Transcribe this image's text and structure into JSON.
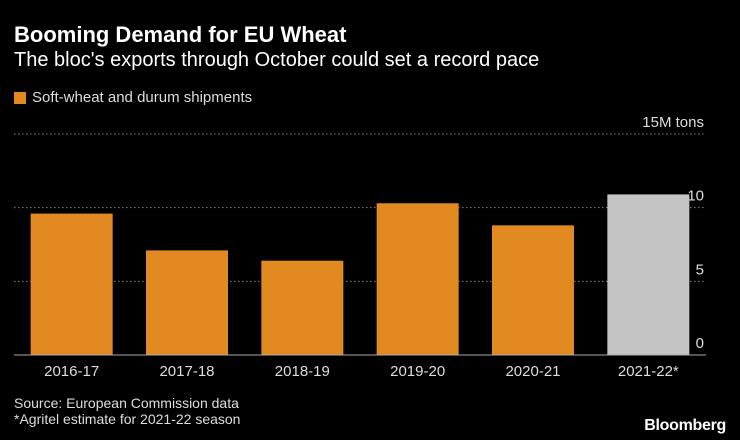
{
  "header": {
    "title": "Booming Demand for EU Wheat",
    "subtitle": "The bloc's exports through October could set a record pace"
  },
  "legend": {
    "label": "Soft-wheat and durum shipments",
    "color": "#e08a21"
  },
  "chart_data": {
    "type": "bar",
    "categories": [
      "2016-17",
      "2017-18",
      "2018-19",
      "2019-20",
      "2020-21",
      "2021-22*"
    ],
    "values": [
      9.6,
      7.1,
      6.4,
      10.3,
      8.8,
      10.9
    ],
    "colors": [
      "#e08a21",
      "#e08a21",
      "#e08a21",
      "#e08a21",
      "#e08a21",
      "#c4c4c4"
    ],
    "ylim": [
      0,
      15
    ],
    "yticks": [
      0,
      5,
      10,
      15
    ],
    "ytick_labels": [
      "0",
      "5",
      "10",
      "15M tons"
    ],
    "title": "Booming Demand for EU Wheat",
    "xlabel": "",
    "ylabel": ""
  },
  "footer": {
    "source": "Source: European Commission data",
    "note": "*Agritel estimate for 2021-22 season",
    "brand": "Bloomberg"
  }
}
